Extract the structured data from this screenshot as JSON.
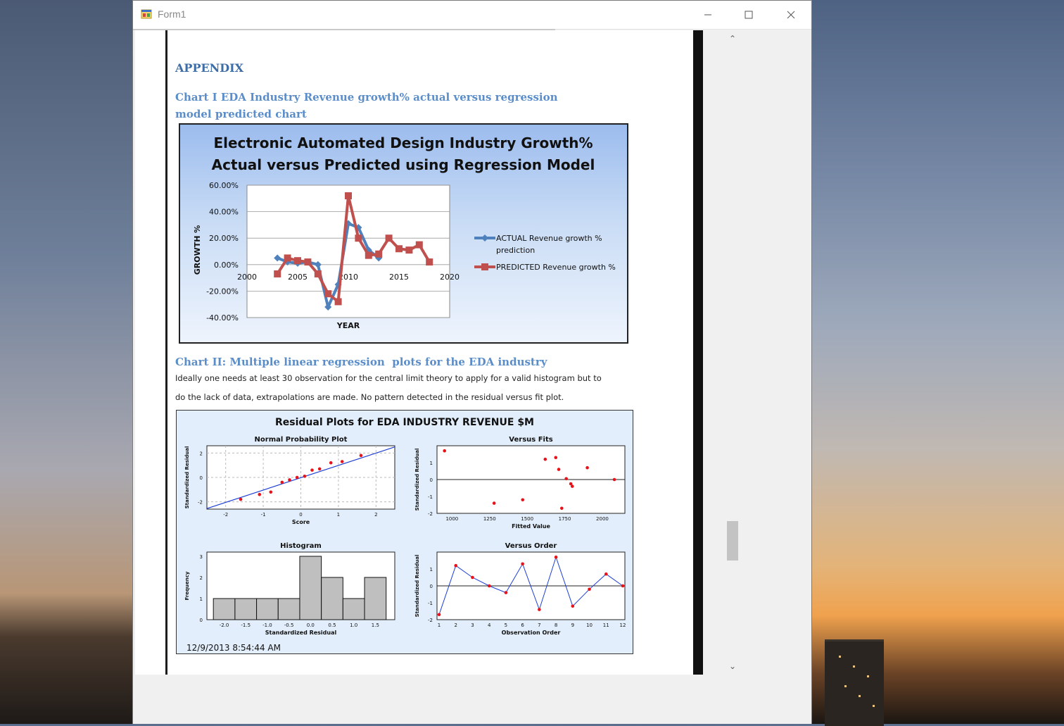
{
  "window": {
    "title": "Form1"
  },
  "document": {
    "appendix_heading": "APPENDIX",
    "chart1_heading": "Chart I EDA Industry Revenue growth% actual versus regression model predicted chart",
    "chart2_heading": "Chart II: Multiple linear regression  plots for the EDA industry",
    "paragraph_line1": "Ideally one needs at least 30 observation for the central limit theory to apply for a valid histogram but to",
    "paragraph_line2": "do the lack of data, extrapolations are made. No pattern detected in the residual versus fit plot."
  },
  "chart_data": [
    {
      "type": "line",
      "title": "Electronic Automated Design Industry Growth% Actual versus Predicted using Regression Model",
      "xlabel": "YEAR",
      "ylabel": "GROWTH %",
      "xlim": [
        2000,
        2020
      ],
      "ylim": [
        -40,
        60
      ],
      "x_ticks": [
        "2000",
        "2005",
        "2010",
        "2015",
        "2020"
      ],
      "y_ticks": [
        "60.00%",
        "40.00%",
        "20.00%",
        "0.00%",
        "-20.00%",
        "-40.00%"
      ],
      "legend_position": "right",
      "series": [
        {
          "name": "ACTUAL Revenue growth % prediction",
          "color": "#4f81bd",
          "x": [
            2003,
            2004,
            2005,
            2006,
            2007,
            2008,
            2009,
            2010,
            2011,
            2012,
            2013
          ],
          "y": [
            5,
            2,
            1,
            2,
            0,
            -32,
            -15,
            31,
            28,
            11,
            5
          ]
        },
        {
          "name": "PREDICTED Revenue growth %",
          "color": "#c0504d",
          "x": [
            2003,
            2004,
            2005,
            2006,
            2007,
            2008,
            2009,
            2010,
            2011,
            2012,
            2013,
            2014,
            2015,
            2016,
            2017,
            2018
          ],
          "y": [
            -7,
            5,
            3,
            2,
            -7,
            -22,
            -28,
            52,
            20,
            7,
            8,
            20,
            12,
            11,
            15,
            2
          ]
        }
      ]
    },
    {
      "type": "scatter",
      "title": "Residual Plots for EDA INDUSTRY REVENUE $M",
      "date_stamp": "12/9/2013 8:54:44 AM",
      "panels": {
        "normal_probability": {
          "title": "Normal Probability Plot",
          "xlabel": "Score",
          "ylabel": "Standardized Residual",
          "x_ticks": [
            "-2",
            "-1",
            "0",
            "1",
            "2"
          ],
          "y_ticks": [
            "2",
            "0",
            "-2"
          ],
          "points": [
            [
              -1.6,
              -1.8
            ],
            [
              -1.1,
              -1.4
            ],
            [
              -0.8,
              -1.2
            ],
            [
              -0.5,
              -0.4
            ],
            [
              -0.3,
              -0.2
            ],
            [
              -0.1,
              0
            ],
            [
              0.1,
              0.1
            ],
            [
              0.3,
              0.6
            ],
            [
              0.5,
              0.7
            ],
            [
              0.8,
              1.2
            ],
            [
              1.1,
              1.3
            ],
            [
              1.6,
              1.8
            ]
          ]
        },
        "versus_fits": {
          "title": "Versus Fits",
          "xlabel": "Fitted Value",
          "ylabel": "Standardized Residual",
          "x_ticks": [
            "1000",
            "1250",
            "1500",
            "1750",
            "2000"
          ],
          "y_ticks": [
            "1",
            "0",
            "-1",
            "-2"
          ],
          "points": [
            [
              950,
              1.7
            ],
            [
              1280,
              -1.4
            ],
            [
              1470,
              -1.2
            ],
            [
              1620,
              1.2
            ],
            [
              1690,
              1.3
            ],
            [
              1710,
              0.6
            ],
            [
              1730,
              -1.7
            ],
            [
              1760,
              0.05
            ],
            [
              1790,
              -0.25
            ],
            [
              1800,
              -0.4
            ],
            [
              1900,
              0.7
            ],
            [
              2080,
              0
            ]
          ]
        },
        "histogram": {
          "title": "Histogram",
          "xlabel": "Standardized Residual",
          "ylabel": "Frequency",
          "x_ticks": [
            "-2.0",
            "-1.5",
            "-1.0",
            "-0.5",
            "0.0",
            "0.5",
            "1.0",
            "1.5"
          ],
          "y_ticks": [
            "3",
            "2",
            "1",
            "0"
          ],
          "bins": [
            -2.25,
            -1.75,
            -1.25,
            -0.75,
            -0.25,
            0.25,
            0.75,
            1.25,
            1.75
          ],
          "counts": [
            1,
            1,
            1,
            1,
            3,
            2,
            1,
            2
          ]
        },
        "versus_order": {
          "title": "Versus Order",
          "xlabel": "Observation Order",
          "ylabel": "Standardized Residual",
          "x_ticks": [
            "1",
            "2",
            "3",
            "4",
            "5",
            "6",
            "7",
            "8",
            "9",
            "10",
            "11",
            "12"
          ],
          "y_ticks": [
            "1",
            "0",
            "-1",
            "-2"
          ],
          "values": [
            -1.7,
            1.2,
            0.5,
            0,
            -0.4,
            1.3,
            -1.4,
            1.7,
            -1.2,
            -0.2,
            0.7,
            0
          ]
        }
      }
    }
  ]
}
